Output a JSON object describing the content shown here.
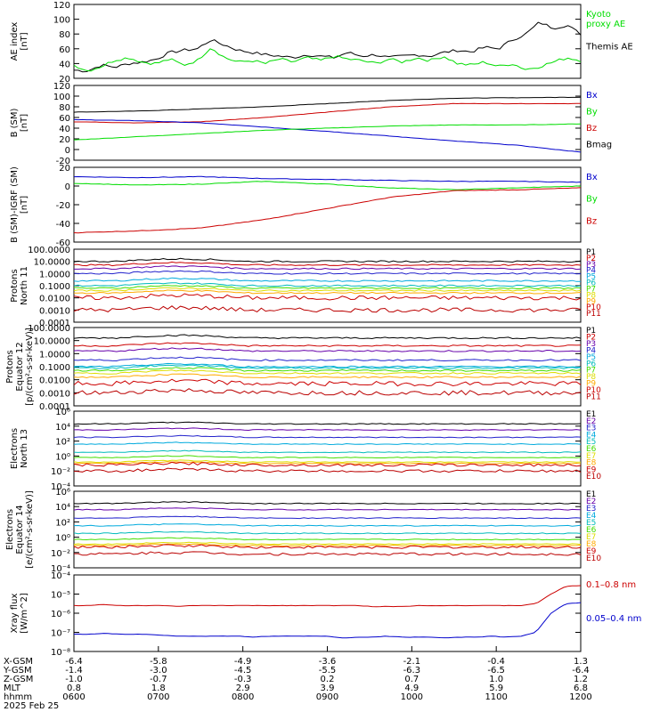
{
  "colors": {
    "black": "#000000",
    "green": "#00dd00",
    "red": "#cc0000",
    "blue": "#0000cc",
    "purple": "#6600aa",
    "navy": "#2222cc",
    "cyan": "#00aadd",
    "teal": "#00bbbb",
    "lime": "#44dd00",
    "yellow": "#dddd00",
    "orange": "#ffaa00",
    "darkred": "#bb0000"
  },
  "chart_data": [
    {
      "type": "line",
      "ylabel": "AE index\n[nT]",
      "ylim": [
        20,
        120
      ],
      "yticks": [
        20,
        40,
        60,
        80,
        100,
        120
      ],
      "legend": [
        {
          "name": "Kyoto\nproxy AE",
          "color": "#00dd00"
        },
        {
          "name": "Themis AE",
          "color": "#000000"
        }
      ],
      "series": [
        {
          "name": "Themis AE",
          "color": "#000000",
          "values": [
            31,
            30,
            38,
            35,
            40,
            42,
            46,
            55,
            58,
            60,
            72,
            65,
            58,
            55,
            52,
            50,
            48,
            52,
            50,
            48,
            55,
            50,
            52,
            48,
            50,
            52,
            50,
            55,
            58,
            56,
            62,
            60,
            72,
            80,
            96,
            88,
            92,
            80
          ]
        },
        {
          "name": "Kyoto proxy AE",
          "color": "#00dd00",
          "values": [
            38,
            30,
            36,
            45,
            48,
            42,
            40,
            46,
            38,
            44,
            62,
            48,
            42,
            44,
            40,
            46,
            42,
            48,
            44,
            50,
            46,
            44,
            40,
            46,
            42,
            48,
            44,
            50,
            40,
            38,
            42,
            36,
            40,
            32,
            36,
            42,
            48,
            44
          ]
        }
      ]
    },
    {
      "type": "line",
      "ylabel": "B (SM)\n[nT]",
      "ylim": [
        -20,
        120
      ],
      "yticks": [
        -20,
        0,
        20,
        40,
        60,
        80,
        100,
        120
      ],
      "legend": [
        {
          "name": "Bx",
          "color": "#0000cc"
        },
        {
          "name": "By",
          "color": "#00dd00"
        },
        {
          "name": "Bz",
          "color": "#cc0000"
        },
        {
          "name": "Bmag",
          "color": "#000000"
        }
      ],
      "series": [
        {
          "name": "Bmag",
          "color": "#000000",
          "values": [
            70,
            72,
            76,
            80,
            86,
            92,
            96,
            97,
            98
          ]
        },
        {
          "name": "Bz",
          "color": "#cc0000",
          "values": [
            52,
            50,
            52,
            60,
            70,
            80,
            86,
            86,
            86
          ]
        },
        {
          "name": "Bx",
          "color": "#0000cc",
          "values": [
            56,
            54,
            50,
            42,
            34,
            25,
            16,
            8,
            -5
          ]
        },
        {
          "name": "By",
          "color": "#00dd00",
          "values": [
            18,
            24,
            30,
            36,
            40,
            44,
            46,
            46,
            48
          ]
        }
      ]
    },
    {
      "type": "line",
      "ylabel": "B (SM)-IGRF (SM)\n[nT]",
      "ylim": [
        -60,
        20
      ],
      "yticks": [
        -60,
        -40,
        -20,
        0,
        20
      ],
      "legend": [
        {
          "name": "Bx",
          "color": "#0000cc"
        },
        {
          "name": "By",
          "color": "#00dd00"
        },
        {
          "name": "Bz",
          "color": "#cc0000"
        }
      ],
      "series": [
        {
          "name": "Bx",
          "color": "#0000cc",
          "values": [
            10,
            9,
            10,
            8,
            7,
            6,
            5,
            5,
            4
          ]
        },
        {
          "name": "By",
          "color": "#00dd00",
          "values": [
            3,
            1,
            2,
            5,
            2,
            -2,
            -4,
            -2,
            0
          ]
        },
        {
          "name": "Bz",
          "color": "#cc0000",
          "values": [
            -50,
            -48,
            -45,
            -36,
            -24,
            -12,
            -5,
            -4,
            -2
          ]
        }
      ]
    },
    {
      "type": "line",
      "scale": "log",
      "ylabel": "Protons\nNorth 11",
      "ylim": [
        0.0001,
        100
      ],
      "yticks": [
        "0.0001",
        "0.0010",
        "0.0100",
        "0.1000",
        "1.0000",
        "10.0000",
        "100.0000"
      ],
      "legend": [
        {
          "name": "P1",
          "color": "#000000"
        },
        {
          "name": "P2",
          "color": "#cc0000"
        },
        {
          "name": "P3",
          "color": "#6600aa"
        },
        {
          "name": "P4",
          "color": "#2222cc"
        },
        {
          "name": "P5",
          "color": "#00aadd"
        },
        {
          "name": "P6",
          "color": "#00bbbb"
        },
        {
          "name": "P7",
          "color": "#44dd00"
        },
        {
          "name": "P8",
          "color": "#dddd00"
        },
        {
          "name": "P9",
          "color": "#ffaa00"
        },
        {
          "name": "P10",
          "color": "#cc0000"
        },
        {
          "name": "P11",
          "color": "#bb0000"
        }
      ],
      "series_log10": [
        1.0,
        0.7,
        0.4,
        0.0,
        -0.6,
        -1.0,
        -1.2,
        -1.4,
        -1.6,
        -2.0,
        -3.0
      ],
      "colors": [
        "#000000",
        "#cc0000",
        "#6600aa",
        "#2222cc",
        "#00aadd",
        "#00bbbb",
        "#44dd00",
        "#dddd00",
        "#ffaa00",
        "#cc0000",
        "#bb0000"
      ]
    },
    {
      "type": "line",
      "scale": "log",
      "ylabel": "Protons\nEquator 12\n[p/(cm²-s-sr-keV)]",
      "ylim": [
        0.0001,
        100
      ],
      "yticks": [
        "0.0001",
        "0.0010",
        "0.0100",
        "0.1000",
        "1.0000",
        "10.0000",
        "100.0000"
      ],
      "legend": [
        {
          "name": "P1",
          "color": "#000000"
        },
        {
          "name": "P2",
          "color": "#cc0000"
        },
        {
          "name": "P3",
          "color": "#6600aa"
        },
        {
          "name": "P4",
          "color": "#2222cc"
        },
        {
          "name": "P5",
          "color": "#00aadd"
        },
        {
          "name": "P6",
          "color": "#00bbbb"
        },
        {
          "name": "P7",
          "color": "#44dd00"
        },
        {
          "name": "P8",
          "color": "#dddd00"
        },
        {
          "name": "P9",
          "color": "#ffaa00"
        },
        {
          "name": "P10",
          "color": "#cc0000"
        },
        {
          "name": "P11",
          "color": "#bb0000"
        }
      ],
      "series_log10": [
        1.2,
        0.6,
        0.2,
        -0.5,
        -1.0,
        -1.1,
        -1.3,
        -1.5,
        -1.8,
        -2.3,
        -3.0
      ],
      "colors": [
        "#000000",
        "#cc0000",
        "#6600aa",
        "#2222cc",
        "#00aadd",
        "#00bbbb",
        "#44dd00",
        "#dddd00",
        "#ffaa00",
        "#cc0000",
        "#bb0000"
      ]
    },
    {
      "type": "line",
      "scale": "log",
      "ylabel": "Electrons\nNorth 13",
      "ylim": [
        0.0001,
        1000000
      ],
      "yticks": [
        "10⁻⁴",
        "10⁻²",
        "10⁰",
        "10²",
        "10⁴",
        "10⁶"
      ],
      "legend": [
        {
          "name": "E1",
          "color": "#000000"
        },
        {
          "name": "E2",
          "color": "#6600aa"
        },
        {
          "name": "E3",
          "color": "#2222cc"
        },
        {
          "name": "E4",
          "color": "#00aadd"
        },
        {
          "name": "E5",
          "color": "#00bbbb"
        },
        {
          "name": "E6",
          "color": "#44dd00"
        },
        {
          "name": "E7",
          "color": "#dddd00"
        },
        {
          "name": "E8",
          "color": "#ffaa00"
        },
        {
          "name": "E9",
          "color": "#cc0000"
        },
        {
          "name": "E10",
          "color": "#bb0000"
        }
      ],
      "series_log10": [
        4.3,
        3.5,
        2.5,
        1.6,
        0.5,
        -0.2,
        -0.8,
        -1.0,
        -1.2,
        -2.0
      ],
      "colors": [
        "#000000",
        "#6600aa",
        "#2222cc",
        "#00aadd",
        "#00bbbb",
        "#44dd00",
        "#dddd00",
        "#ffaa00",
        "#cc0000",
        "#bb0000"
      ]
    },
    {
      "type": "line",
      "scale": "log",
      "ylabel": "Electrons\nEquator 14\n[e/(cm²-s-sr-keV)]",
      "ylim": [
        0.0001,
        1000000
      ],
      "yticks": [
        "10⁻⁴",
        "10⁻²",
        "10⁰",
        "10²",
        "10⁴",
        "10⁶"
      ],
      "legend": [
        {
          "name": "E1",
          "color": "#000000"
        },
        {
          "name": "E2",
          "color": "#6600aa"
        },
        {
          "name": "E3",
          "color": "#2222cc"
        },
        {
          "name": "E4",
          "color": "#00aadd"
        },
        {
          "name": "E5",
          "color": "#00bbbb"
        },
        {
          "name": "E6",
          "color": "#44dd00"
        },
        {
          "name": "E7",
          "color": "#dddd00"
        },
        {
          "name": "E8",
          "color": "#ffaa00"
        },
        {
          "name": "E9",
          "color": "#cc0000"
        },
        {
          "name": "E10",
          "color": "#bb0000"
        }
      ],
      "series_log10": [
        4.4,
        3.6,
        2.5,
        1.5,
        0.5,
        -0.3,
        -0.9,
        -1.1,
        -1.3,
        -2.2
      ],
      "colors": [
        "#000000",
        "#6600aa",
        "#2222cc",
        "#00aadd",
        "#00bbbb",
        "#44dd00",
        "#dddd00",
        "#ffaa00",
        "#cc0000",
        "#bb0000"
      ]
    },
    {
      "type": "line",
      "scale": "log",
      "ylabel": "Xray flux\n[W/m^2]",
      "ylim": [
        1e-08,
        0.0001
      ],
      "yticks": [
        "10⁻⁸",
        "10⁻⁷",
        "10⁻⁶",
        "10⁻⁵",
        "10⁻⁴"
      ],
      "legend": [
        {
          "name": "0.1–0.8 nm",
          "color": "#cc0000"
        },
        {
          "name": "0.05–0.4 nm",
          "color": "#0000cc"
        }
      ],
      "series": [
        {
          "name": "0.1–0.8 nm",
          "color": "#cc0000",
          "log10_values": [
            -5.6,
            -5.6,
            -5.55,
            -5.6,
            -5.6,
            -5.6,
            -5.6,
            -5.65,
            -5.6,
            -5.6,
            -5.6,
            -5.6,
            -5.6,
            -5.6,
            -5.6,
            -5.6,
            -5.6,
            -5.6,
            -5.6,
            -5.6,
            -5.65,
            -5.65,
            -5.65,
            -5.6,
            -5.6,
            -5.6,
            -5.6,
            -5.6,
            -5.6,
            -5.6,
            -5.6,
            -5.5,
            -5.0,
            -4.6,
            -4.55
          ]
        },
        {
          "name": "0.05–0.4 nm",
          "color": "#0000cc",
          "log10_values": [
            -7.1,
            -7.1,
            -7.05,
            -7.1,
            -7.1,
            -7.1,
            -7.15,
            -7.2,
            -7.2,
            -7.2,
            -7.2,
            -7.2,
            -7.25,
            -7.2,
            -7.2,
            -7.2,
            -7.2,
            -7.2,
            -7.3,
            -7.25,
            -7.25,
            -7.2,
            -7.25,
            -7.25,
            -7.25,
            -7.3,
            -7.25,
            -7.25,
            -7.2,
            -7.25,
            -7.2,
            -7.0,
            -6.0,
            -5.5,
            -5.45
          ]
        }
      ]
    }
  ],
  "xaxis": {
    "labels": [
      {
        "name": "X-GSM",
        "values": [
          "-6.4",
          "-5.8",
          "-4.9",
          "-3.6",
          "-2.1",
          "-0.4",
          "1.3"
        ]
      },
      {
        "name": "Y-GSM",
        "values": [
          "-1.4",
          "-3.0",
          "-4.5",
          "-5.5",
          "-6.3",
          "-6.5",
          "-6.4"
        ]
      },
      {
        "name": "Z-GSM",
        "values": [
          "-1.0",
          "-0.7",
          "-0.3",
          "0.2",
          "0.7",
          "1.0",
          "1.2"
        ]
      },
      {
        "name": "MLT",
        "values": [
          "0.8",
          "1.8",
          "2.9",
          "3.9",
          "4.9",
          "5.9",
          "6.8"
        ]
      },
      {
        "name": "hhmm",
        "values": [
          "0600",
          "0700",
          "0800",
          "0900",
          "1000",
          "1100",
          "1200"
        ]
      }
    ],
    "date": "2025 Feb 25"
  }
}
